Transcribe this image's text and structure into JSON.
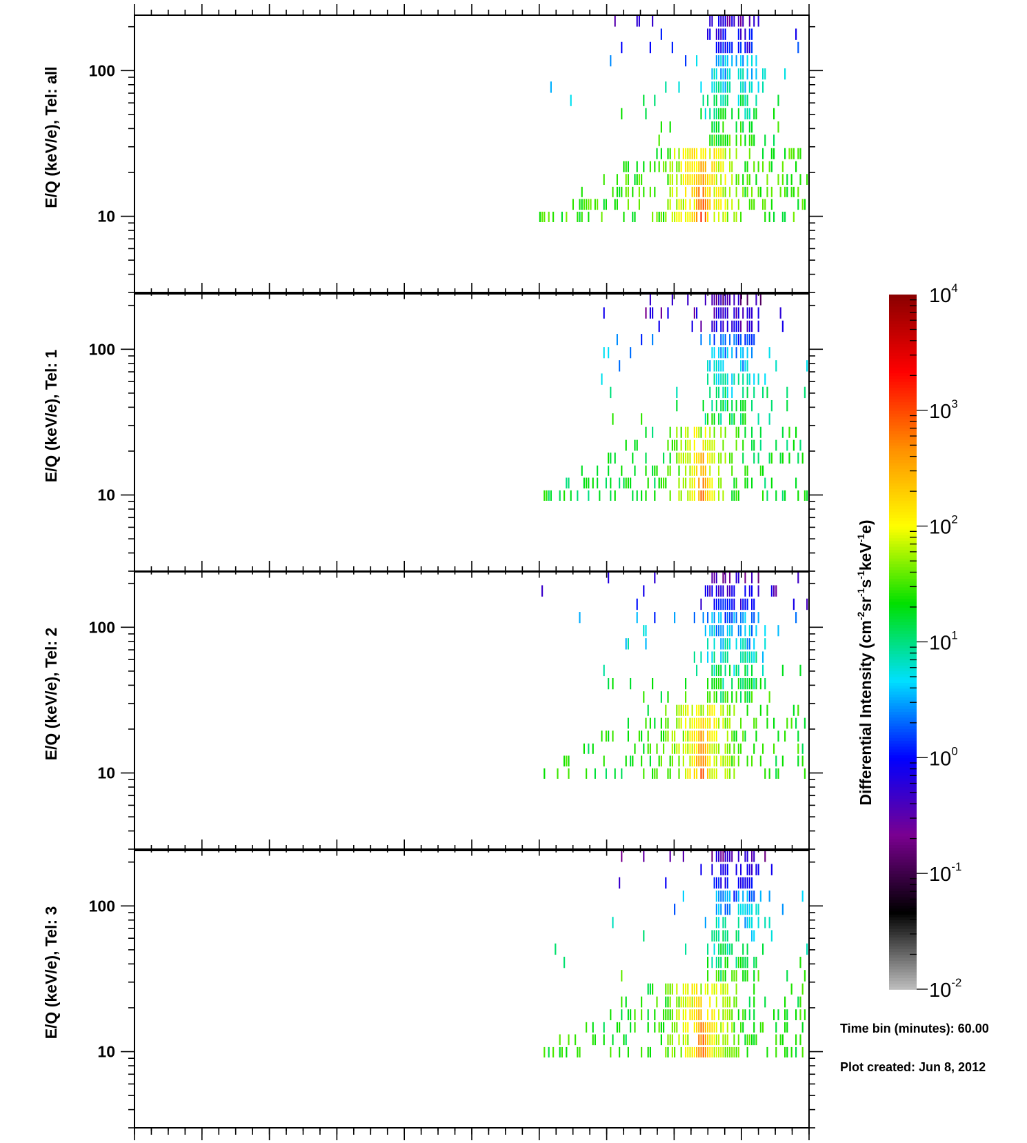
{
  "chart_data": {
    "type": "heatmap",
    "x_scale": "linear",
    "y_scale": "log",
    "ylim": [
      3,
      240
    ],
    "y_ticks": [
      {
        "value": 10,
        "label": "10"
      },
      {
        "value": 100,
        "label": "100"
      }
    ],
    "panels": [
      {
        "ylabel": "E/Q (keV/e), Tel: all",
        "seed": 11,
        "scale": 1.0
      },
      {
        "ylabel": "E/Q (keV/e), Tel: 1",
        "seed": 23,
        "scale": 0.62
      },
      {
        "ylabel": "E/Q (keV/e), Tel: 2",
        "seed": 37,
        "scale": 0.78
      },
      {
        "ylabel": "E/Q (keV/e), Tel: 3",
        "seed": 51,
        "scale": 0.8
      }
    ],
    "colorbar": {
      "title_main": "Differential Intensity (cm",
      "title_parts": [
        {
          "text": "Differential Intensity (cm",
          "sup": false
        },
        {
          "text": "-2",
          "sup": true
        },
        {
          "text": "sr",
          "sup": false
        },
        {
          "text": "-1",
          "sup": true
        },
        {
          "text": "s",
          "sup": false
        },
        {
          "text": "-1",
          "sup": true
        },
        {
          "text": "keV",
          "sup": false
        },
        {
          "text": "-1",
          "sup": true
        },
        {
          "text": "e)",
          "sup": false
        }
      ],
      "scale": "log",
      "range": [
        0.01,
        10000
      ],
      "ticks": [
        {
          "base": "10",
          "exp": "4",
          "value": 10000
        },
        {
          "base": "10",
          "exp": "3",
          "value": 1000
        },
        {
          "base": "10",
          "exp": "2",
          "value": 100
        },
        {
          "base": "10",
          "exp": "1",
          "value": 10
        },
        {
          "base": "10",
          "exp": "0",
          "value": 1
        },
        {
          "base": "10",
          "exp": "-1",
          "value": 0.1
        },
        {
          "base": "10",
          "exp": "-2",
          "value": 0.01
        }
      ],
      "colors": [
        "#bfbfbf",
        "#000000",
        "#7a0090",
        "#0000ff",
        "#00e0ff",
        "#00e000",
        "#ffff00",
        "#ff9000",
        "#ff0000",
        "#8a0000"
      ]
    },
    "data_structure": {
      "energy_bins_keV": [
        8.9,
        10.8,
        13.2,
        16,
        19.6,
        24,
        29.5,
        36.5,
        45,
        55.5,
        68.5,
        84.5,
        104,
        128,
        158,
        195,
        240
      ],
      "hot_columns_fraction": [
        0.868,
        0.84,
        0.903
      ],
      "spread_fraction": [
        0.6,
        1.0
      ]
    }
  },
  "info": {
    "time_bin": "Time bin (minutes): 60.00",
    "plot_created": "Plot created: Jun  8, 2012"
  }
}
